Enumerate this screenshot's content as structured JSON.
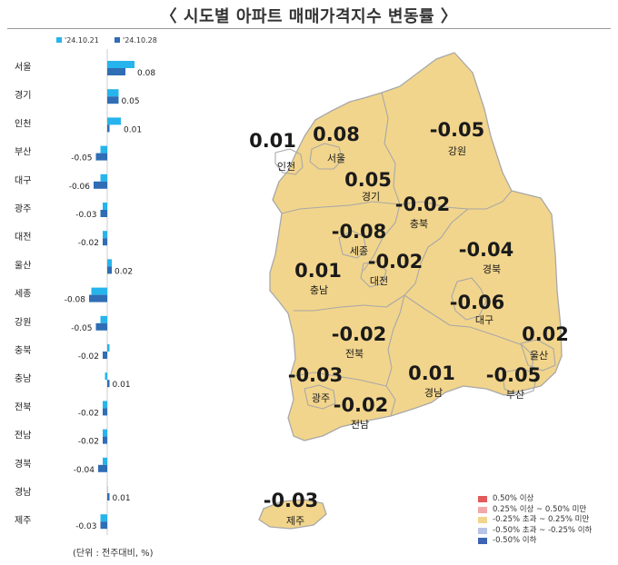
{
  "title": "〈 시도별 아파트 매매가격지수 변동률 〉",
  "unit_note": "(단위 : 전주대비, %)",
  "colors": {
    "series1": "#27b4ec",
    "series2": "#2f6db5",
    "map_fill": "#f2d58c",
    "map_stroke": "#b3b3b3",
    "legend": [
      "#e35a5a",
      "#f2a8a8",
      "#f2d58c",
      "#b8c4e6",
      "#3e64b4"
    ]
  },
  "chart_data": [
    {
      "type": "bar",
      "orientation": "horizontal",
      "series": [
        {
          "name": "'24.10.21",
          "values": [
            0.12,
            0.05,
            0.06,
            -0.03,
            -0.03,
            -0.02,
            -0.02,
            0.02,
            -0.07,
            -0.03,
            0.01,
            -0.01,
            -0.02,
            -0.02,
            -0.02,
            0.0,
            -0.03
          ]
        },
        {
          "name": "'24.10.28",
          "values": [
            0.08,
            0.05,
            0.01,
            -0.05,
            -0.06,
            -0.03,
            -0.02,
            0.02,
            -0.08,
            -0.05,
            -0.02,
            0.01,
            -0.02,
            -0.02,
            -0.04,
            0.01,
            -0.03
          ]
        }
      ],
      "categories": [
        "서울",
        "경기",
        "인천",
        "부산",
        "대구",
        "광주",
        "대전",
        "울산",
        "세종",
        "강원",
        "충북",
        "충남",
        "전북",
        "전남",
        "경북",
        "경남",
        "제주"
      ],
      "data_labels": [
        "0.08",
        "0.05",
        "0.01",
        "-0.05",
        "-0.06",
        "-0.03",
        "-0.02",
        "0.02",
        "-0.08",
        "-0.05",
        "-0.02",
        "0.01",
        "-0.02",
        "-0.02",
        "-0.04",
        "0.01",
        "-0.03"
      ],
      "legend": "top"
    },
    {
      "type": "map",
      "regions": [
        {
          "name": "인천",
          "value": "0.01"
        },
        {
          "name": "서울",
          "value": "0.08"
        },
        {
          "name": "강원",
          "value": "-0.05"
        },
        {
          "name": "경기",
          "value": "0.05"
        },
        {
          "name": "충북",
          "value": "-0.02"
        },
        {
          "name": "세종",
          "value": "-0.08"
        },
        {
          "name": "경북",
          "value": "-0.04"
        },
        {
          "name": "충남",
          "value": "0.01"
        },
        {
          "name": "대전",
          "value": "-0.02"
        },
        {
          "name": "대구",
          "value": "-0.06"
        },
        {
          "name": "전북",
          "value": "-0.02"
        },
        {
          "name": "울산",
          "value": "0.02"
        },
        {
          "name": "광주",
          "value": "-0.03"
        },
        {
          "name": "경남",
          "value": "0.01"
        },
        {
          "name": "부산",
          "value": "-0.05"
        },
        {
          "name": "전남",
          "value": "-0.02"
        },
        {
          "name": "제주",
          "value": "-0.03"
        }
      ],
      "legend": {
        "position": "bottom-right",
        "items": [
          "0.50% 이상",
          "0.25% 이상 ~ 0.50% 미만",
          "-0.25% 초과 ~ 0.25% 미만",
          "-0.50% 초과 ~ -0.25% 이하",
          "-0.50% 이하"
        ]
      }
    }
  ]
}
